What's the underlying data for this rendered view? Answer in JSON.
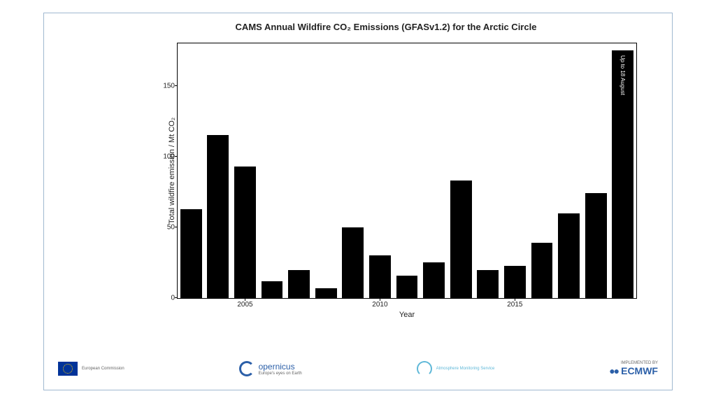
{
  "chart": {
    "type": "bar",
    "title": "CAMS Annual Wildfire CO₂ Emissions (GFASv1.2) for the Arctic Circle",
    "title_fontsize": 13,
    "xlabel": "Year",
    "ylabel": "Total wildfire emission / Mt CO₂",
    "label_fontsize": 11,
    "years": [
      2003,
      2004,
      2005,
      2006,
      2007,
      2008,
      2009,
      2010,
      2011,
      2012,
      2013,
      2014,
      2015,
      2016,
      2017,
      2018,
      2019
    ],
    "values": [
      63,
      115,
      93,
      12,
      20,
      7,
      50,
      30,
      16,
      25,
      83,
      20,
      23,
      39,
      60,
      74,
      175
    ],
    "bar_color": "#000000",
    "bar_width": 0.8,
    "ylim": [
      0,
      180
    ],
    "yticks": [
      0,
      50,
      100,
      150
    ],
    "xtick_labels": [
      2005,
      2010,
      2015
    ],
    "background_color": "#ffffff",
    "border_color": "#000000",
    "annotation": {
      "text": "Up to 18 August",
      "bar_index": 16,
      "color": "#ffffff",
      "fontsize": 8
    }
  },
  "frame": {
    "border_color": "#a0b8d0"
  },
  "logos": {
    "eu": {
      "label": "European Commission"
    },
    "copernicus": {
      "label": "opernicus",
      "sub": "Europe's eyes on Earth"
    },
    "cams": {
      "label": "Atmosphere Monitoring Service"
    },
    "ecmwf": {
      "prefix": "IMPLEMENTED BY",
      "label": "ECMWF"
    }
  }
}
